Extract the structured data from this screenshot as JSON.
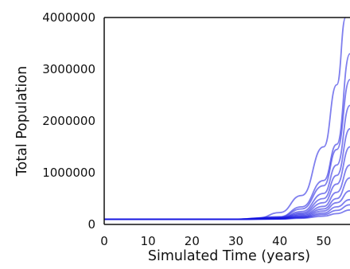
{
  "chart_data": {
    "type": "line",
    "title": "",
    "xlabel": "Simulated Time (years)",
    "ylabel": "Total Population",
    "xlim": [
      0,
      56
    ],
    "ylim": [
      0,
      4000000
    ],
    "xticks": [
      0,
      10,
      20,
      30,
      40,
      50
    ],
    "yticks": [
      0,
      1000000,
      2000000,
      3000000,
      4000000
    ],
    "grid": false,
    "legend": "none",
    "line_color": "#1515e0",
    "series": [
      {
        "x": [
          0,
          30,
          35,
          40,
          45,
          50,
          53,
          55
        ],
        "values": [
          100000,
          100000,
          120000,
          230000,
          560000,
          1500000,
          2700000,
          4000000
        ]
      },
      {
        "x": [
          0,
          30,
          40,
          45,
          50,
          53,
          56
        ],
        "values": [
          100000,
          100000,
          150000,
          340000,
          850000,
          1550000,
          3300000
        ]
      },
      {
        "x": [
          0,
          30,
          40,
          45,
          50,
          53,
          56
        ],
        "values": [
          100000,
          100000,
          140000,
          300000,
          750000,
          1450000,
          2800000
        ]
      },
      {
        "x": [
          0,
          30,
          40,
          45,
          50,
          53,
          56
        ],
        "values": [
          100000,
          100000,
          130000,
          250000,
          600000,
          1150000,
          2300000
        ]
      },
      {
        "x": [
          0,
          30,
          40,
          45,
          50,
          53,
          56
        ],
        "values": [
          100000,
          100000,
          125000,
          220000,
          500000,
          950000,
          1850000
        ]
      },
      {
        "x": [
          0,
          30,
          40,
          45,
          50,
          53,
          56
        ],
        "values": [
          100000,
          100000,
          120000,
          200000,
          420000,
          780000,
          1500000
        ]
      },
      {
        "x": [
          0,
          30,
          40,
          45,
          50,
          53,
          56
        ],
        "values": [
          100000,
          100000,
          115000,
          180000,
          350000,
          620000,
          1150000
        ]
      },
      {
        "x": [
          0,
          30,
          40,
          45,
          50,
          53,
          56
        ],
        "values": [
          100000,
          100000,
          112000,
          165000,
          300000,
          500000,
          900000
        ]
      },
      {
        "x": [
          0,
          30,
          40,
          45,
          50,
          53,
          56
        ],
        "values": [
          100000,
          100000,
          110000,
          150000,
          260000,
          420000,
          650000
        ]
      },
      {
        "x": [
          0,
          30,
          40,
          45,
          50,
          53,
          56
        ],
        "values": [
          100000,
          100000,
          108000,
          140000,
          220000,
          340000,
          480000
        ]
      },
      {
        "x": [
          0,
          30,
          40,
          45,
          50,
          53,
          56
        ],
        "values": [
          100000,
          100000,
          106000,
          130000,
          190000,
          270000,
          380000
        ]
      },
      {
        "x": [
          0,
          30,
          40,
          45,
          50,
          53,
          56
        ],
        "values": [
          100000,
          100000,
          104000,
          120000,
          160000,
          210000,
          280000
        ]
      }
    ]
  }
}
